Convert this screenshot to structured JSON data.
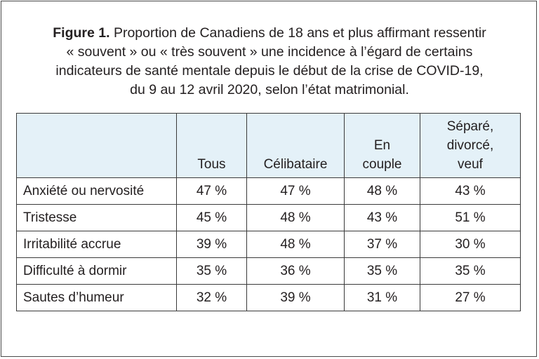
{
  "figure": {
    "label": "Figure 1.",
    "title_lines": [
      "Proportion de Canadiens de 18 ans et plus affirmant ressentir",
      "« souvent » ou « très souvent » une incidence à l’égard de certains",
      "indicateurs de santé mentale depuis le début de la crise de COVID-19,",
      "du 9 au 12 avril 2020, selon l’état matrimonial."
    ]
  },
  "table": {
    "headers": [
      "",
      "Tous",
      "Célibataire",
      "En couple",
      "Séparé, divorcé, veuf"
    ],
    "header_lines": [
      [
        ""
      ],
      [
        "Tous"
      ],
      [
        "Célibataire"
      ],
      [
        "En",
        "couple"
      ],
      [
        "Séparé,",
        "divorcé,",
        "veuf"
      ]
    ],
    "rows": [
      [
        "Anxiété ou nervosité",
        "47 %",
        "47 %",
        "48 %",
        "43 %"
      ],
      [
        "Tristesse",
        "45 %",
        "48 %",
        "43 %",
        "51 %"
      ],
      [
        "Irritabilité accrue",
        "39 %",
        "48 %",
        "37 %",
        "30 %"
      ],
      [
        "Difficulté à dormir",
        "35 %",
        "36 %",
        "35 %",
        "35 %"
      ],
      [
        "Sautes d’humeur",
        "32 %",
        "39 %",
        "31 %",
        "27 %"
      ]
    ]
  }
}
